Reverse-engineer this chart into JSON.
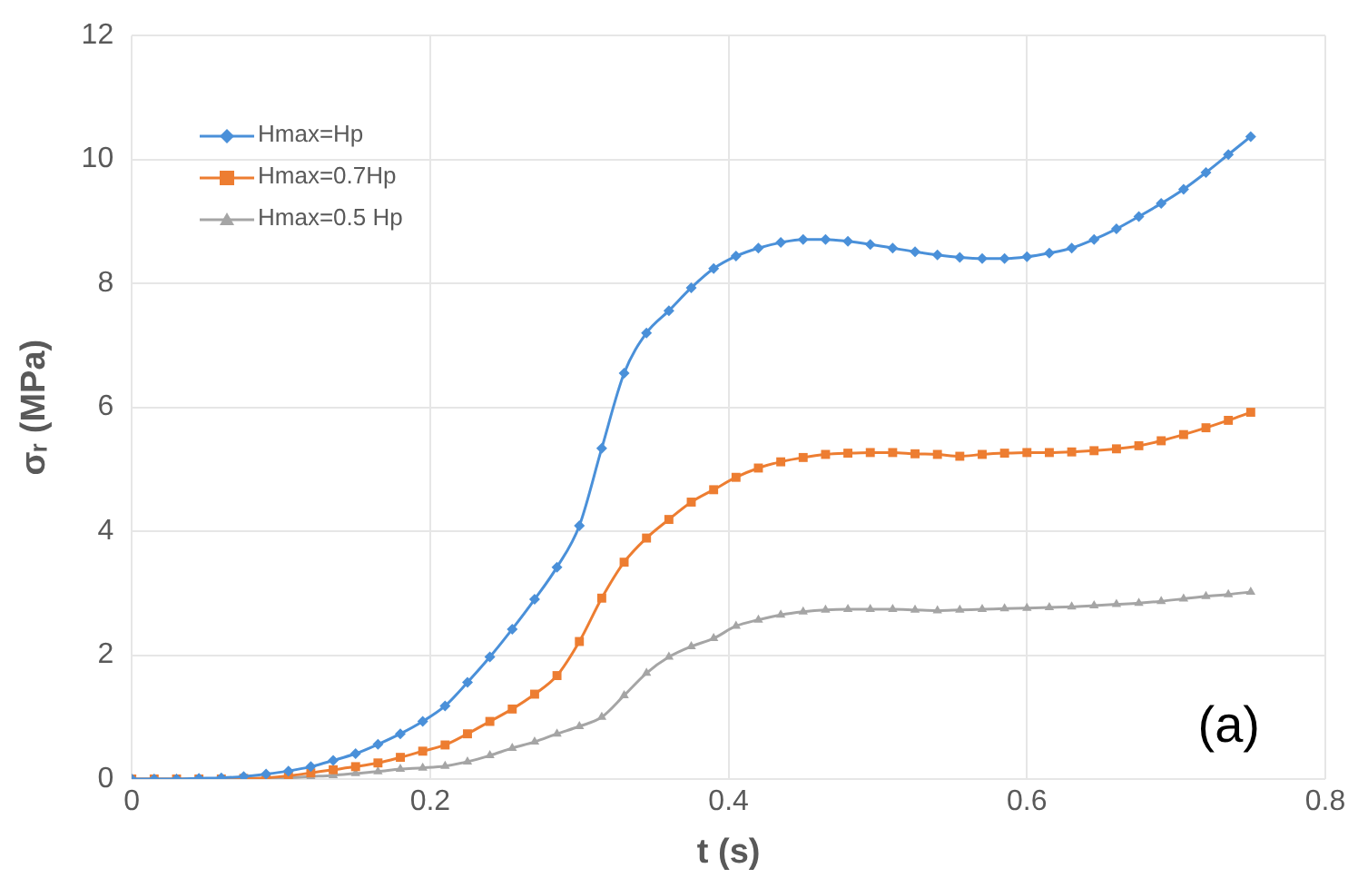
{
  "chart_data": {
    "type": "line",
    "xlabel": "t (s)",
    "ylabel": "σᵣ (MPa)",
    "annotations": [
      "(a)"
    ],
    "x": [
      0,
      0.015,
      0.03,
      0.045,
      0.06,
      0.075,
      0.09,
      0.105,
      0.12,
      0.135,
      0.15,
      0.165,
      0.18,
      0.195,
      0.21,
      0.225,
      0.24,
      0.255,
      0.27,
      0.285,
      0.3,
      0.315,
      0.33,
      0.345,
      0.36,
      0.375,
      0.39,
      0.405,
      0.42,
      0.435,
      0.45,
      0.465,
      0.48,
      0.495,
      0.51,
      0.525,
      0.54,
      0.555,
      0.57,
      0.585,
      0.6,
      0.615,
      0.63,
      0.645,
      0.66,
      0.675,
      0.69,
      0.705,
      0.72,
      0.735,
      0.75
    ],
    "series": [
      {
        "name": "Hmax=Hp",
        "color": "#4a90d9",
        "marker": "diamond",
        "values": [
          0,
          0,
          0,
          0.01,
          0.02,
          0.04,
          0.08,
          0.13,
          0.2,
          0.3,
          0.41,
          0.56,
          0.73,
          0.93,
          1.18,
          1.56,
          1.97,
          2.42,
          2.9,
          3.42,
          4.09,
          5.34,
          6.55,
          7.2,
          7.56,
          7.93,
          8.24,
          8.44,
          8.57,
          8.66,
          8.71,
          8.71,
          8.68,
          8.63,
          8.57,
          8.51,
          8.46,
          8.42,
          8.4,
          8.4,
          8.43,
          8.49,
          8.57,
          8.71,
          8.88,
          9.08,
          9.29,
          9.52,
          9.79,
          10.08,
          10.37
        ]
      },
      {
        "name": "Hmax=0.7Hp",
        "color": "#ed7d31",
        "marker": "square",
        "values": [
          0,
          0,
          0,
          0,
          0,
          0.01,
          0.02,
          0.05,
          0.1,
          0.15,
          0.2,
          0.26,
          0.35,
          0.45,
          0.55,
          0.73,
          0.93,
          1.13,
          1.37,
          1.67,
          2.22,
          2.92,
          3.5,
          3.89,
          4.19,
          4.47,
          4.67,
          4.87,
          5.02,
          5.12,
          5.19,
          5.24,
          5.26,
          5.27,
          5.27,
          5.25,
          5.24,
          5.21,
          5.24,
          5.26,
          5.27,
          5.27,
          5.28,
          5.3,
          5.33,
          5.38,
          5.46,
          5.56,
          5.67,
          5.79,
          5.92
        ]
      },
      {
        "name": "Hmax=0.5 Hp",
        "color": "#a5a5a5",
        "marker": "triangle",
        "values": [
          0,
          0,
          0,
          0,
          0,
          0.01,
          0.01,
          0.02,
          0.04,
          0.06,
          0.09,
          0.12,
          0.16,
          0.18,
          0.21,
          0.28,
          0.38,
          0.5,
          0.6,
          0.73,
          0.85,
          1.0,
          1.35,
          1.71,
          1.97,
          2.14,
          2.27,
          2.47,
          2.57,
          2.65,
          2.7,
          2.73,
          2.74,
          2.74,
          2.74,
          2.73,
          2.72,
          2.73,
          2.74,
          2.75,
          2.76,
          2.77,
          2.78,
          2.8,
          2.82,
          2.84,
          2.87,
          2.91,
          2.95,
          2.98,
          3.02
        ]
      }
    ],
    "xlim": [
      0,
      0.8
    ],
    "xticks": [
      0,
      0.2,
      0.4,
      0.6,
      0.8
    ],
    "ylim": [
      0,
      12
    ],
    "yticks": [
      0,
      2,
      4,
      6,
      8,
      10,
      12
    ],
    "grid": true,
    "legend": "top left",
    "line_style": "solid"
  }
}
